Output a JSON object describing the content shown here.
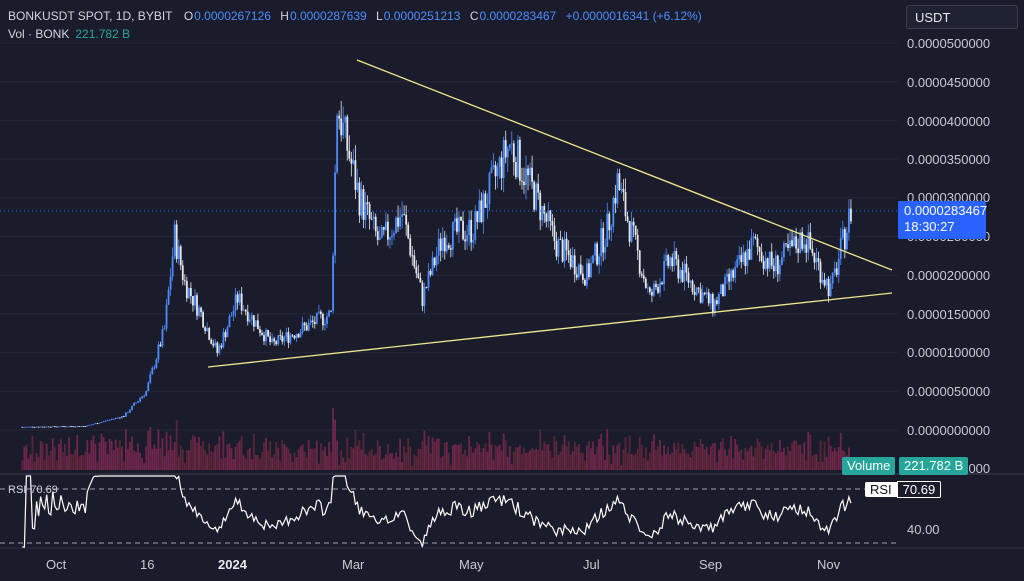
{
  "header": {
    "symbol": "BONKUSDT SPOT, 1D, BYBIT",
    "open_label": "O",
    "open": "0.0000267126",
    "high_label": "H",
    "high": "0.0000287639",
    "low_label": "L",
    "low": "0.0000251213",
    "close_label": "C",
    "close": "0.0000283467",
    "change": "+0.0000016341 (+6.12%)"
  },
  "volume_legend": {
    "label": "Vol · BONK",
    "value": "221.782 B"
  },
  "currency": "USDT",
  "price_tag": {
    "price": "0.0000283467",
    "countdown": "18:30:27"
  },
  "volume_tag": {
    "label": "Volume",
    "value": "221.782 B"
  },
  "rsi": {
    "label": "RSI",
    "value": "70.69"
  },
  "colors": {
    "background": "#1a1c2b",
    "candle": "#4c8dff",
    "trendline": "#f0e68c",
    "volume": "#c2185b",
    "rsi_line": "#ffffff",
    "price_tag": "#2962ff",
    "volume_tag": "#26a69a"
  },
  "chart_data": {
    "type": "candlestick",
    "price_axis_ticks": [
      "0.0000500000",
      "0.0000450000",
      "0.0000400000",
      "0.0000350000",
      "0.0000300000",
      "0.0000250000",
      "0.0000200000",
      "0.0000150000",
      "0.0000100000",
      "0.0000050000",
      "0.0000000000",
      "0.0000000000"
    ],
    "time_axis_ticks": [
      "Oct",
      "16",
      "2024",
      "Mar",
      "May",
      "Jul",
      "Sep",
      "Nov"
    ],
    "rsi_axis_ticks": [
      "40.00"
    ],
    "ylim": [
      0,
      5e-05
    ],
    "rsi_ylim": [
      30,
      70
    ],
    "close_series": [
      {
        "t": "2023-10-01",
        "c": 4e-07
      },
      {
        "t": "2023-11-01",
        "c": 5e-07
      },
      {
        "t": "2023-11-20",
        "c": 1.8e-06
      },
      {
        "t": "2023-12-01",
        "c": 5e-06
      },
      {
        "t": "2023-12-10",
        "c": 1.3e-05
      },
      {
        "t": "2023-12-15",
        "c": 2.5e-05
      },
      {
        "t": "2023-12-20",
        "c": 1.9e-05
      },
      {
        "t": "2023-12-28",
        "c": 1.5e-05
      },
      {
        "t": "2024-01-05",
        "c": 1e-05
      },
      {
        "t": "2024-01-15",
        "c": 1.7e-05
      },
      {
        "t": "2024-02-01",
        "c": 1.1e-05
      },
      {
        "t": "2024-02-15",
        "c": 1.3e-05
      },
      {
        "t": "2024-03-01",
        "c": 1.5e-05
      },
      {
        "t": "2024-03-04",
        "c": 4.2e-05
      },
      {
        "t": "2024-03-15",
        "c": 3e-05
      },
      {
        "t": "2024-03-25",
        "c": 2.4e-05
      },
      {
        "t": "2024-04-05",
        "c": 2.8e-05
      },
      {
        "t": "2024-04-15",
        "c": 1.7e-05
      },
      {
        "t": "2024-04-25",
        "c": 2.5e-05
      },
      {
        "t": "2024-05-10",
        "c": 2.6e-05
      },
      {
        "t": "2024-05-28",
        "c": 3.7e-05
      },
      {
        "t": "2024-06-10",
        "c": 3e-05
      },
      {
        "t": "2024-06-20",
        "c": 2.4e-05
      },
      {
        "t": "2024-07-05",
        "c": 2e-05
      },
      {
        "t": "2024-07-15",
        "c": 2.6e-05
      },
      {
        "t": "2024-07-20",
        "c": 3.2e-05
      },
      {
        "t": "2024-08-05",
        "c": 1.7e-05
      },
      {
        "t": "2024-08-15",
        "c": 2.2e-05
      },
      {
        "t": "2024-09-05",
        "c": 1.6e-05
      },
      {
        "t": "2024-09-25",
        "c": 2.4e-05
      },
      {
        "t": "2024-10-05",
        "c": 2.1e-05
      },
      {
        "t": "2024-10-20",
        "c": 2.5e-05
      },
      {
        "t": "2024-11-02",
        "c": 1.8e-05
      },
      {
        "t": "2024-11-12",
        "c": 2.83e-05
      }
    ],
    "trendlines": [
      {
        "name": "upper",
        "from": {
          "t": "2024-03-04",
          "v": 4.75e-05
        },
        "to": {
          "t": "2024-11-20",
          "v": 2.1e-05
        }
      },
      {
        "name": "lower",
        "from": {
          "t": "2023-12-15",
          "v": 1.15e-05
        },
        "to": {
          "t": "2024-11-20",
          "v": 1.72e-05
        }
      }
    ]
  }
}
